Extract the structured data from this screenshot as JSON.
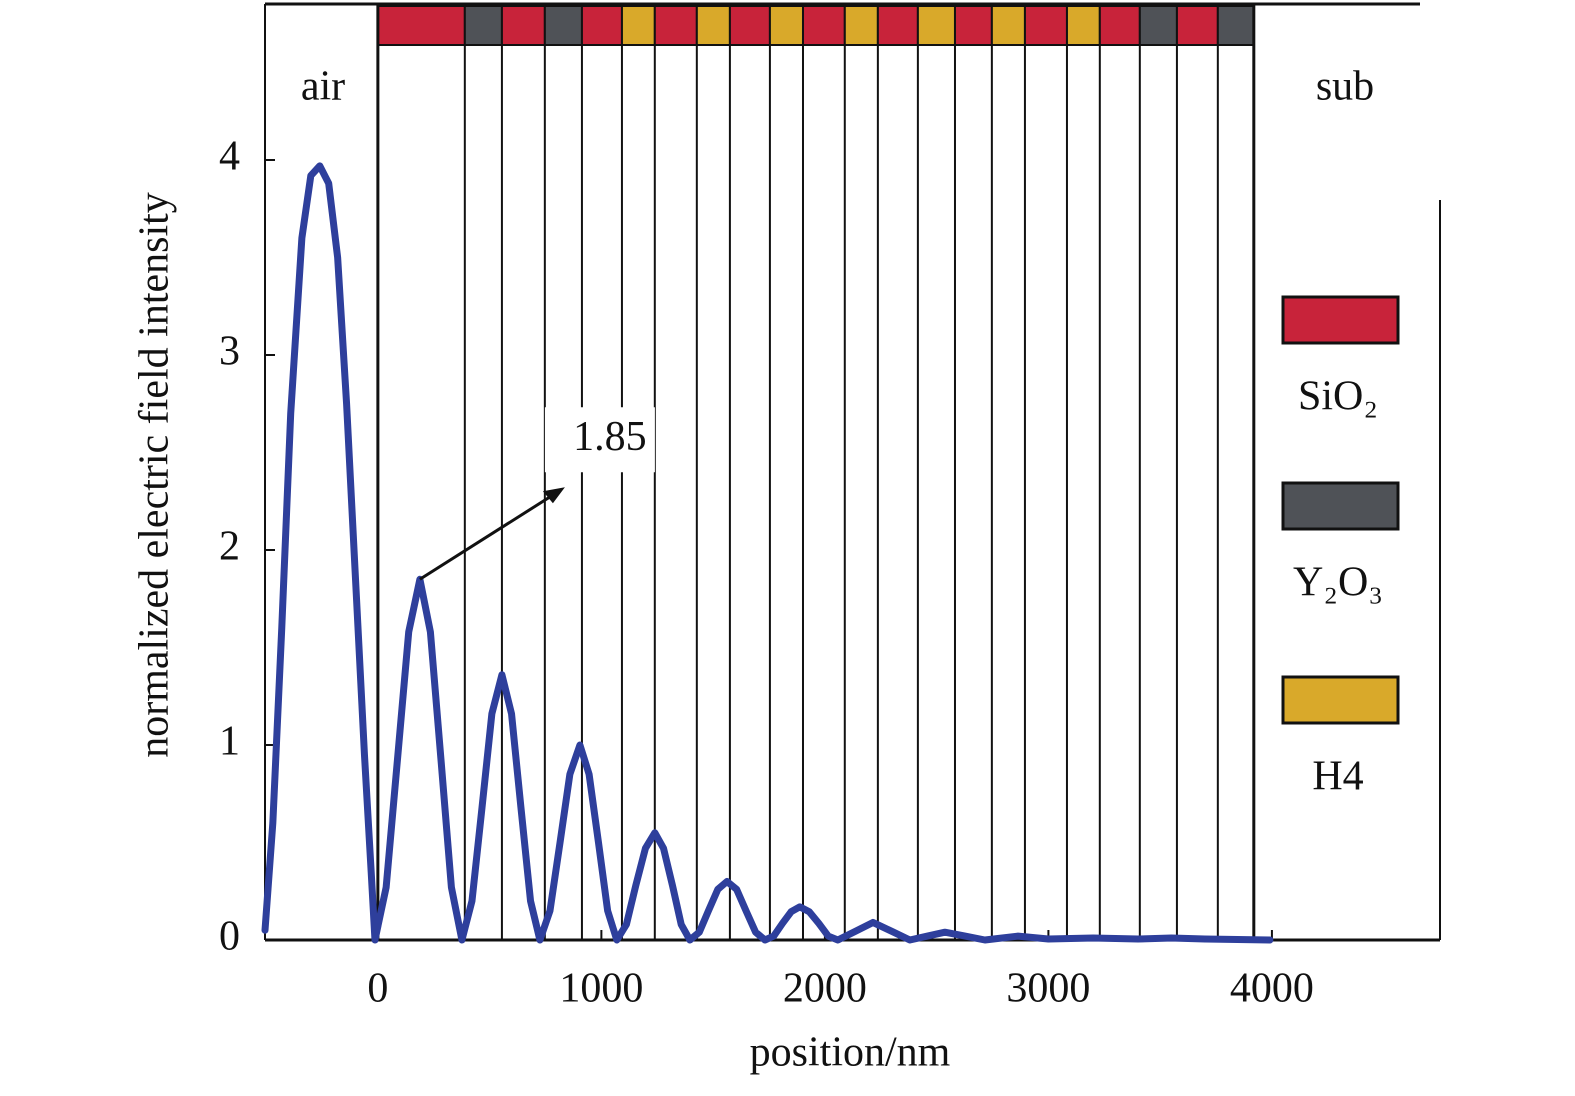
{
  "chart_data": {
    "type": "line",
    "xlabel": "position/nm",
    "ylabel": "normalized electric field intensity",
    "xlim": [
      -505,
      4752
    ],
    "ylim": [
      0,
      4.8
    ],
    "xticks": [
      0,
      1000,
      2000,
      3000,
      4000
    ],
    "yticks": [
      0,
      1,
      2,
      3,
      4
    ],
    "grid": false,
    "color": "#2e3f9c",
    "x": [
      -505,
      -470,
      -430,
      -390,
      -340,
      -300,
      -260,
      -220,
      -180,
      -140,
      -100,
      -60,
      -30,
      -13,
      37,
      88,
      138,
      188,
      235,
      282,
      329,
      376,
      421,
      466,
      510,
      555,
      598,
      640,
      683,
      725,
      770,
      815,
      859,
      904,
      945,
      987,
      1028,
      1069,
      1112,
      1154,
      1197,
      1239,
      1278,
      1318,
      1357,
      1396,
      1438,
      1479,
      1521,
      1562,
      1605,
      1647,
      1690,
      1732,
      1771,
      1810,
      1849,
      1888,
      1930,
      1973,
      2015,
      2058,
      2137,
      2215,
      2298,
      2380,
      2459,
      2537,
      2627,
      2716,
      2864,
      3000,
      3200,
      3400,
      3550,
      3700,
      3991
    ],
    "values": [
      0.05,
      0.6,
      1.6,
      2.7,
      3.6,
      3.92,
      3.97,
      3.88,
      3.5,
      2.75,
      1.85,
      0.95,
      0.35,
      0,
      0.27,
      0.93,
      1.58,
      1.85,
      1.58,
      0.93,
      0.27,
      0,
      0.2,
      0.68,
      1.16,
      1.36,
      1.16,
      0.68,
      0.2,
      0,
      0.15,
      0.5,
      0.85,
      1.0,
      0.85,
      0.5,
      0.15,
      0,
      0.08,
      0.28,
      0.47,
      0.55,
      0.47,
      0.28,
      0.08,
      0,
      0.04,
      0.15,
      0.26,
      0.3,
      0.26,
      0.15,
      0.04,
      0,
      0.02,
      0.085,
      0.145,
      0.17,
      0.145,
      0.085,
      0.02,
      0,
      0.045,
      0.09,
      0.045,
      0,
      0.02,
      0.04,
      0.02,
      0,
      0.02,
      0.005,
      0.01,
      0.005,
      0.01,
      0.005,
      0
    ],
    "layer_edges": [
      0,
      389,
      555,
      747,
      913,
      1092,
      1239,
      1427,
      1575,
      1754,
      1902,
      2089,
      2237,
      2416,
      2582,
      2747,
      2895,
      3083,
      3230,
      3409,
      3575,
      3758,
      3919
    ],
    "layer_materials": [
      "SiO₂",
      "Y₂O₃",
      "SiO₂",
      "Y₂O₃",
      "SiO₂",
      "H4",
      "SiO₂",
      "H4",
      "SiO₂",
      "H4",
      "SiO₂",
      "H4",
      "SiO₂",
      "H4",
      "SiO₂",
      "H4",
      "SiO₂",
      "H4",
      "SiO₂",
      "Y₂O₃",
      "SiO₂",
      "Y₂O₃"
    ],
    "legend": [
      {
        "name": "SiO₂",
        "color": "#c8233a"
      },
      {
        "name": "Y₂O₃",
        "color": "#4f5257"
      },
      {
        "name": "H4",
        "color": "#d9a92a"
      }
    ],
    "region_labels": [
      "air",
      "sub"
    ],
    "annotations": [
      {
        "text": "1.85",
        "x": 188,
        "y": 1.85
      }
    ]
  }
}
